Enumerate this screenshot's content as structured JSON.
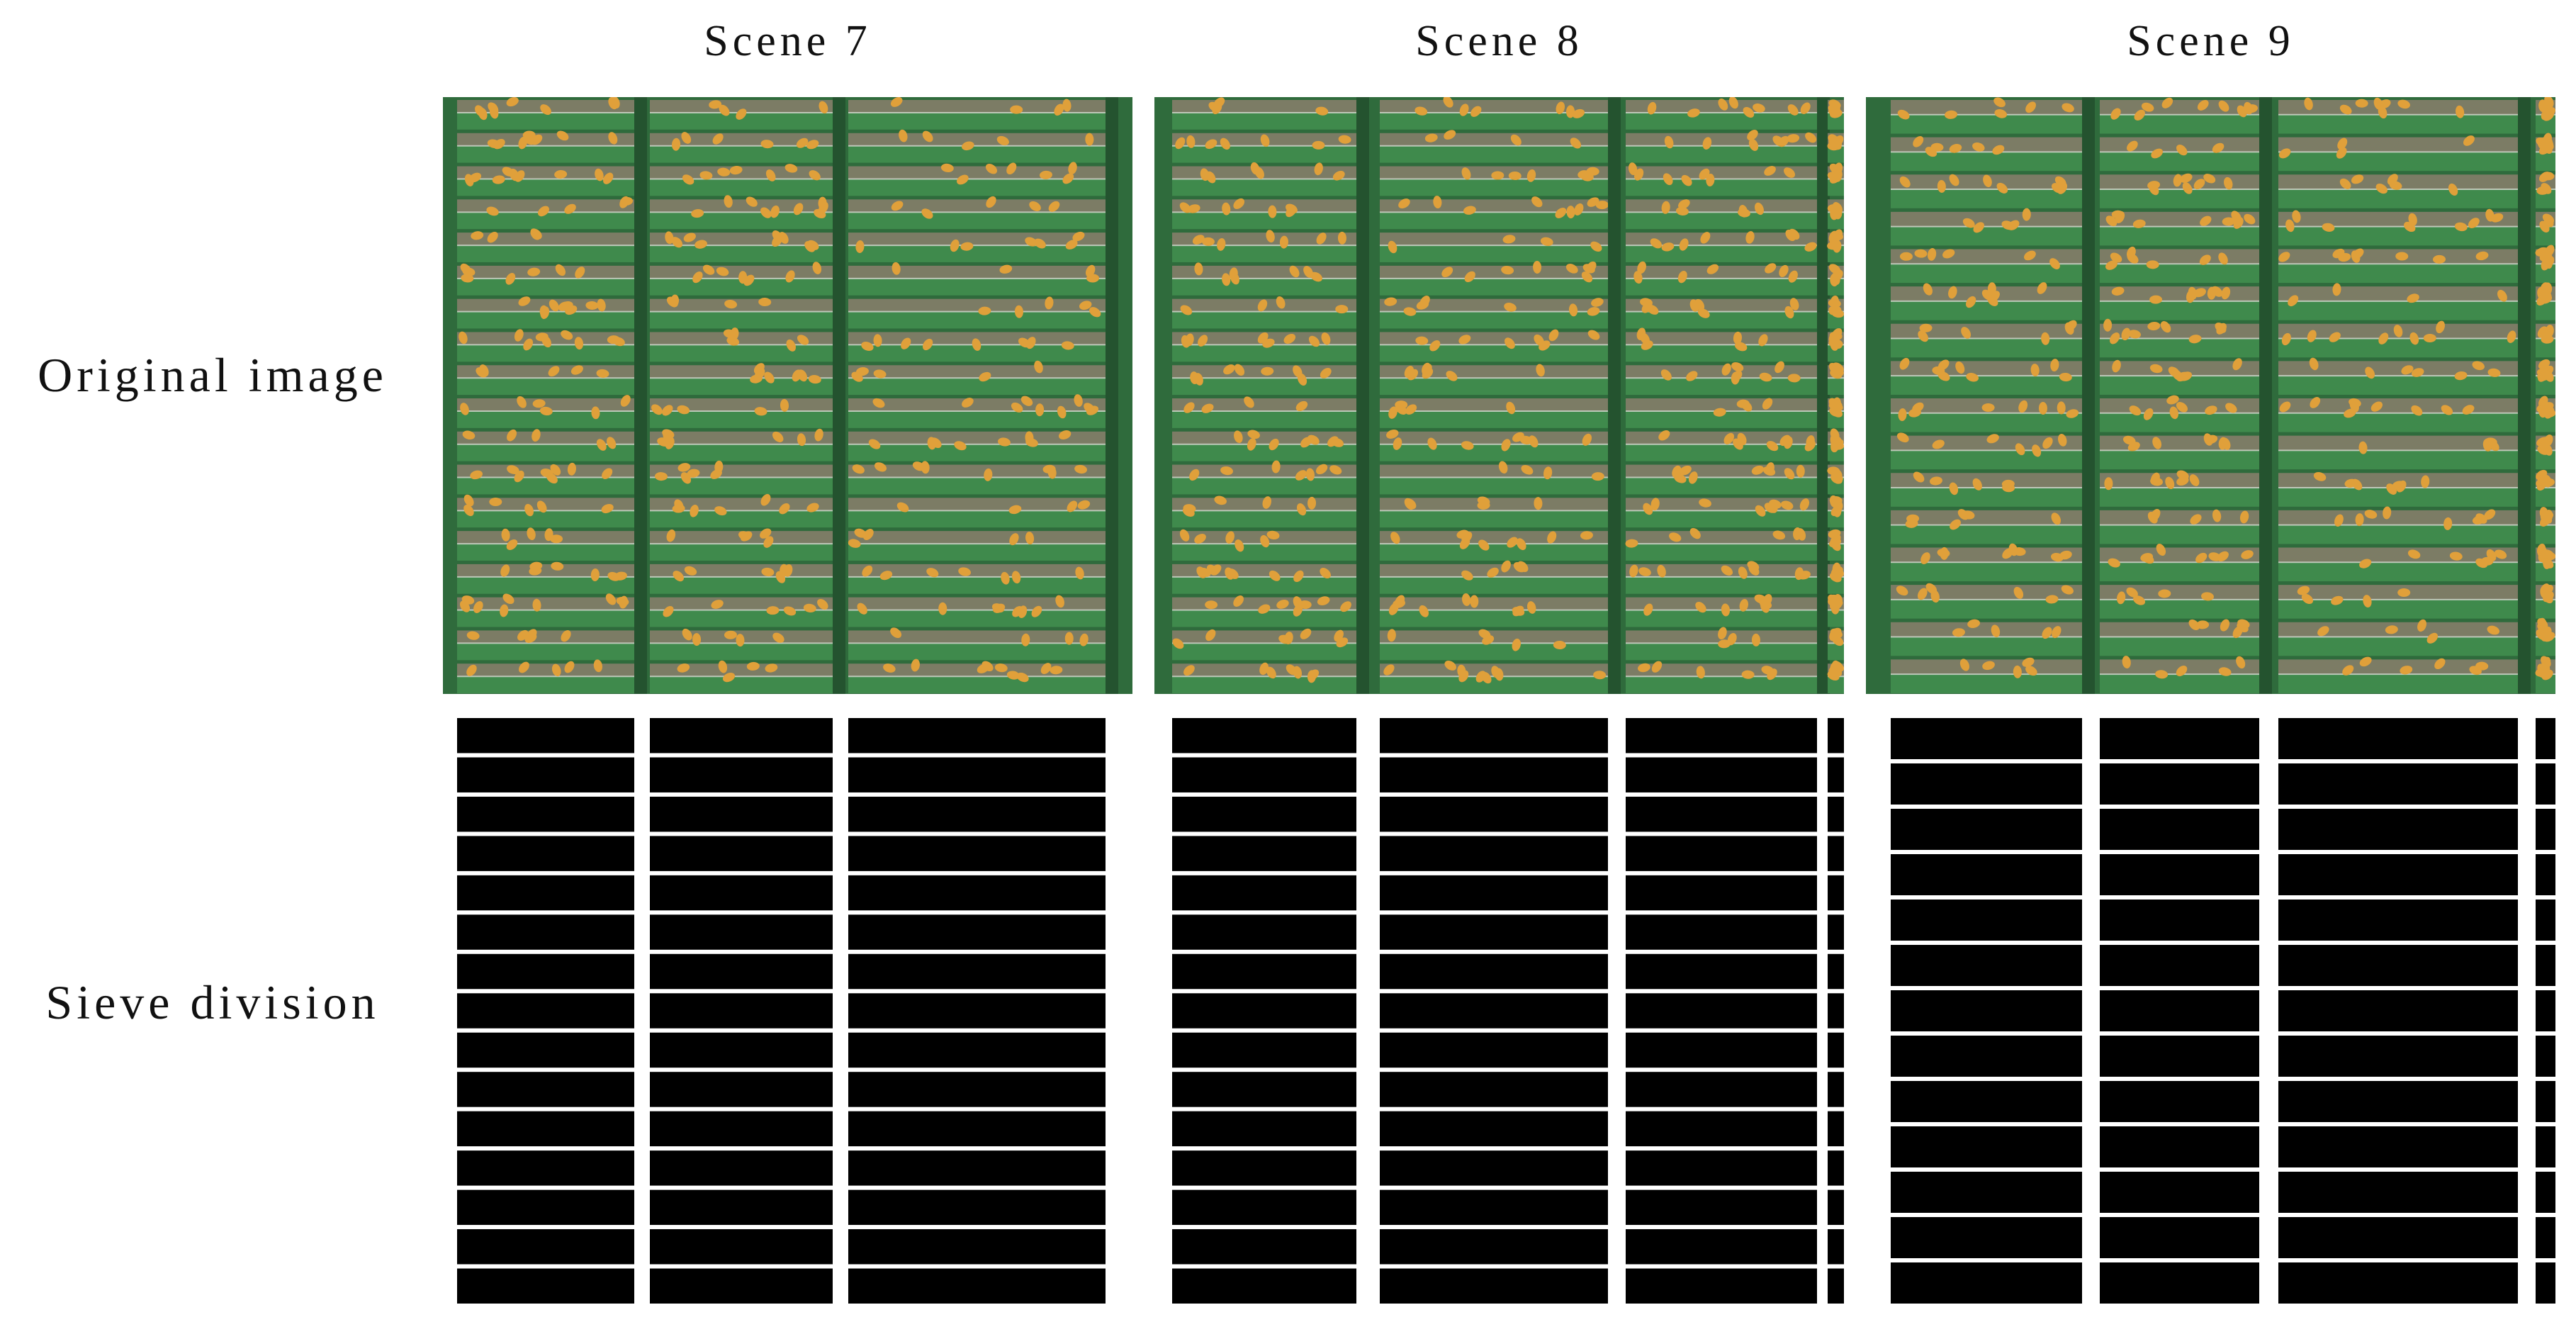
{
  "columns": [
    {
      "title": "Scene 7"
    },
    {
      "title": "Scene 8"
    },
    {
      "title": "Scene 9"
    }
  ],
  "rows": [
    {
      "label": "Original image"
    },
    {
      "label": "Sieve division"
    }
  ],
  "colors": {
    "sieve_green": "#2f6b3c",
    "slat_green": "#3f8a4c",
    "debris": "#8a7f6c",
    "kernel": "#e0a03a",
    "mask_black": "#000000",
    "mask_white": "#ffffff"
  }
}
